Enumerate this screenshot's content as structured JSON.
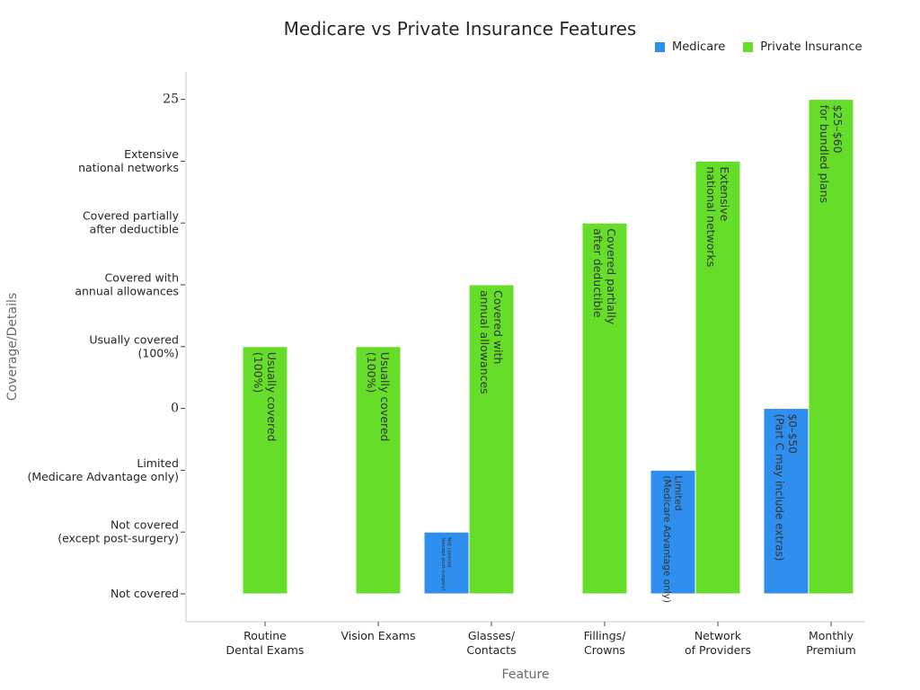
{
  "chart_data": {
    "type": "bar",
    "title": "Medicare vs Private Insurance Features",
    "xlabel": "Feature",
    "ylabel": "Coverage/Details",
    "categories": [
      "Routine\nDental Exams",
      "Vision Exams",
      "Glasses/\nContacts",
      "Fillings/\nCrowns",
      "Network\nof Providers",
      "Monthly\nPremium"
    ],
    "y_levels": [
      "Not covered",
      "Not covered\n(except post-surgery)",
      "Limited\n(Medicare Advantage only)",
      "0",
      "Usually covered\n(100%)",
      "Covered with\nannual allowances",
      "Covered partially\nafter deductible",
      "Extensive\nnational networks",
      "25"
    ],
    "series": [
      {
        "name": "Medicare",
        "color": "#2e8fef",
        "values": [
          null,
          null,
          1,
          null,
          2,
          3
        ],
        "labels": [
          "",
          "",
          "Not covered\n(except post-surgery)",
          "",
          "Limited\n(Medicare Advantage only)",
          "$0–$50\n(Part C may include extras)"
        ]
      },
      {
        "name": "Private Insurance",
        "color": "#66dd29",
        "values": [
          4,
          4,
          5,
          6,
          7,
          8
        ],
        "labels": [
          "Usually covered\n(100%)",
          "Usually covered\n(100%)",
          "Covered with\nannual allowances",
          "Covered partially\nafter deductible",
          "Extensive\nnational networks",
          "$25–$60\nfor bundled plans"
        ]
      }
    ],
    "ylim": [
      0,
      8
    ],
    "grid": false,
    "legend_position": "top-right"
  }
}
